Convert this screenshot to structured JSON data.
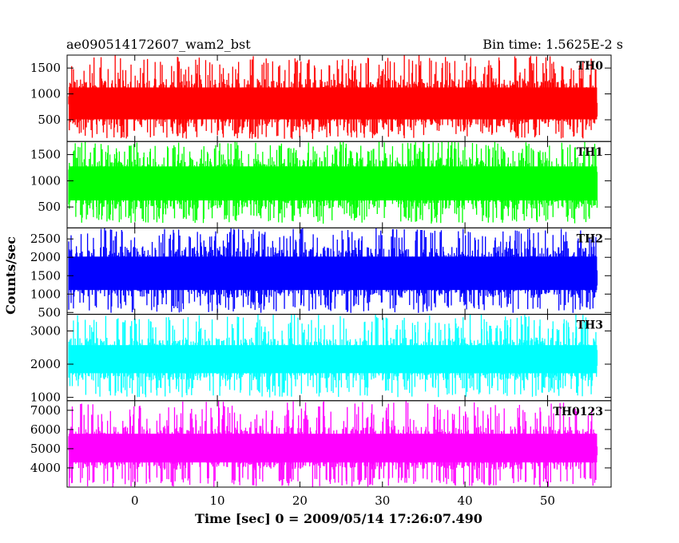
{
  "page": {
    "title_left": "ae090514172607_wam2_bst",
    "title_right": "Bin time: 1.5625E-2 s"
  },
  "chart_data": {
    "type": "line",
    "title": "ae090514172607_wam2_bst",
    "subtitle": "Bin time: 1.5625E-2 s",
    "xlabel": "Time [sec] 0 = 2009/05/14 17:26:07.490",
    "ylabel": "Counts/sec",
    "xlim": [
      -8.2,
      57.7
    ],
    "x_range_data": [
      -8.0,
      56.0
    ],
    "x_ticks": [
      0,
      10,
      20,
      30,
      40,
      50
    ],
    "grid": false,
    "panels": [
      {
        "label": "TH0",
        "color": "#ff0000",
        "ylim": [
          80,
          1750
        ],
        "y_ticks": [
          500,
          1000,
          1500
        ],
        "level_mean": 800,
        "core_band": [
          350,
          1300
        ],
        "peak_range": [
          1350,
          1750
        ],
        "trough_range": [
          130,
          320
        ]
      },
      {
        "label": "TH1",
        "color": "#00ff00",
        "ylim": [
          100,
          1750
        ],
        "y_ticks": [
          500,
          1000,
          1500
        ],
        "level_mean": 950,
        "core_band": [
          450,
          1450
        ],
        "peak_range": [
          1500,
          1750
        ],
        "trough_range": [
          180,
          380
        ]
      },
      {
        "label": "TH2",
        "color": "#0000ff",
        "ylim": [
          450,
          2800
        ],
        "y_ticks": [
          500,
          1000,
          1500,
          2000,
          2500
        ],
        "level_mean": 1500,
        "core_band": [
          900,
          2300
        ],
        "peak_range": [
          2400,
          2800
        ],
        "trough_range": [
          480,
          800
        ]
      },
      {
        "label": "TH3",
        "color": "#00ffff",
        "ylim": [
          900,
          3500
        ],
        "y_ticks": [
          1000,
          2000,
          3000
        ],
        "level_mean": 2150,
        "core_band": [
          1500,
          2800
        ],
        "peak_range": [
          2950,
          3500
        ],
        "trough_range": [
          1000,
          1350
        ]
      },
      {
        "label": "TH0123",
        "color": "#ff00ff",
        "ylim": [
          3000,
          7500
        ],
        "y_ticks": [
          4000,
          5000,
          6000,
          7000
        ],
        "level_mean": 5000,
        "core_band": [
          3900,
          6200
        ],
        "peak_range": [
          6400,
          7500
        ],
        "trough_range": [
          3000,
          3500
        ]
      }
    ]
  }
}
